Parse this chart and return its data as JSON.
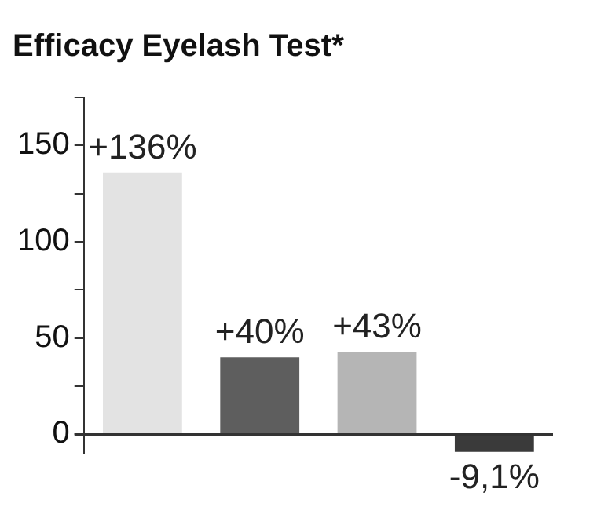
{
  "chart_data": {
    "type": "bar",
    "title": "Efficacy Eyelash Test*",
    "categories": [
      null,
      null,
      null,
      null
    ],
    "values": [
      136,
      40,
      43,
      -9.1
    ],
    "colors": [
      "#e3e3e3",
      "#5e5e5e",
      "#b5b5b5",
      "#3a3a3a"
    ],
    "value_labels": [
      "+136%",
      "+40%",
      "+43%",
      "-9,1%"
    ],
    "ylim": [
      -10,
      175
    ],
    "yticks": [
      0,
      {
        "value": 25,
        "label": null
      },
      50,
      {
        "value": 75,
        "label": null
      },
      100,
      {
        "value": 125,
        "label": null
      },
      150,
      {
        "value": 175,
        "label": null
      }
    ],
    "legend": false
  }
}
